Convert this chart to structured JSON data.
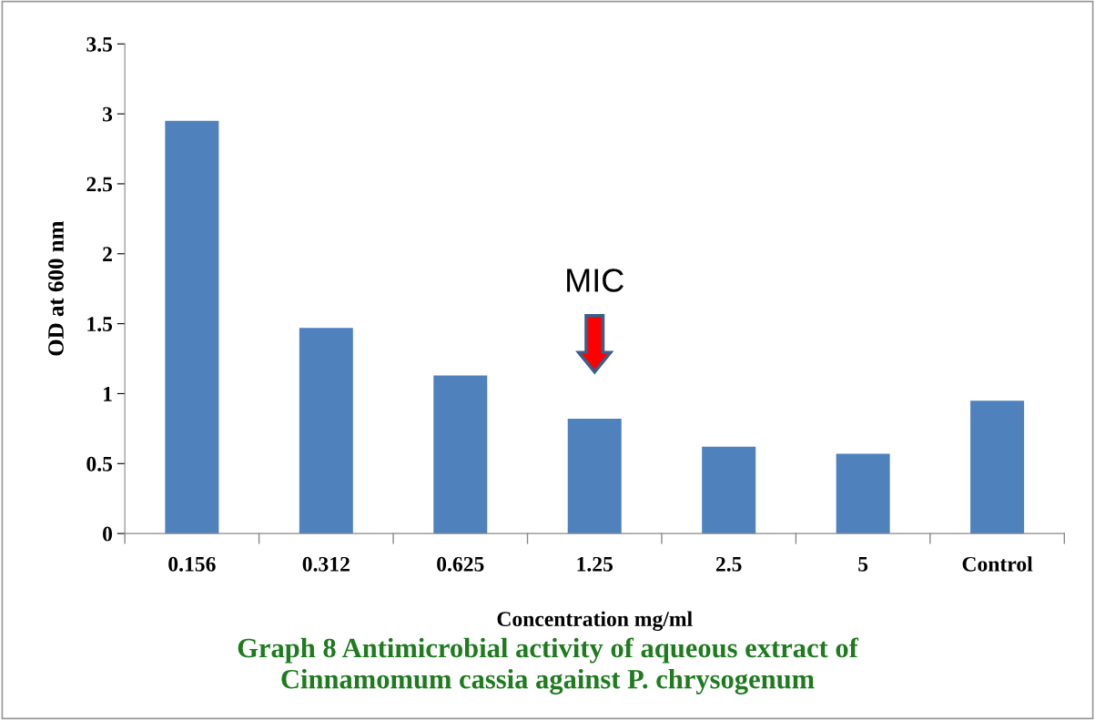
{
  "chart_data": {
    "type": "bar",
    "title": "Graph 8 Antimicrobial activity of aqueous extract of\nCinnamomum cassia against P. chrysogenum",
    "xlabel": "Concentration mg/ml",
    "ylabel": "OD at 600 nm",
    "categories": [
      "0.156",
      "0.312",
      "0.625",
      "1.25",
      "2.5",
      "5",
      "Control"
    ],
    "values": [
      2.95,
      1.47,
      1.13,
      0.82,
      0.62,
      0.57,
      0.95
    ],
    "color": "#4f81bd",
    "ylim": [
      0,
      3.5
    ],
    "yticks": [
      0,
      0.5,
      1,
      1.5,
      2,
      2.5,
      3,
      3.5
    ],
    "annotations": [
      "MIC"
    ],
    "grid": false
  }
}
